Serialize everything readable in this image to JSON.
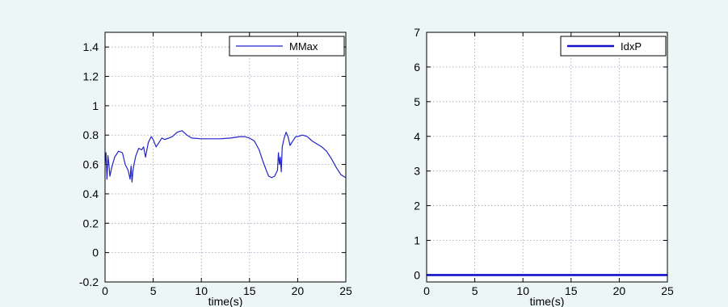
{
  "figure": {
    "background": "#ecf6f6"
  },
  "chart_data": [
    {
      "type": "line",
      "xlabel": "time(s)",
      "ylabel": "",
      "xlim": [
        0,
        25
      ],
      "ylim": [
        -0.2,
        1.5
      ],
      "xticks": [
        0,
        5,
        10,
        15,
        20,
        25
      ],
      "yticks": [
        -0.2,
        0,
        0.2,
        0.4,
        0.6,
        0.8,
        1,
        1.2,
        1.4
      ],
      "grid": true,
      "legend_position": "top-right",
      "series": [
        {
          "name": "MMax",
          "color": "#2222cc",
          "line_width": "thin",
          "x": [
            0,
            0.1,
            0.2,
            0.3,
            0.4,
            0.5,
            0.7,
            1.0,
            1.4,
            1.8,
            2.1,
            2.4,
            2.6,
            2.7,
            2.8,
            2.9,
            3.0,
            3.2,
            3.5,
            3.8,
            4.0,
            4.2,
            4.5,
            4.8,
            5.0,
            5.3,
            5.6,
            5.9,
            6.2,
            6.6,
            7.0,
            7.5,
            8.0,
            8.5,
            9.0,
            10,
            11,
            12,
            13,
            14,
            14.5,
            15,
            15.5,
            16,
            16.4,
            16.8,
            17.0,
            17.3,
            17.6,
            17.9,
            18.0,
            18.1,
            18.2,
            18.3,
            18.4,
            18.6,
            18.8,
            19.0,
            19.2,
            19.4,
            19.6,
            19.8,
            20.0,
            20.5,
            21.0,
            21.5,
            22.0,
            22.5,
            23.0,
            23.5,
            24.0,
            24.5,
            25.0
          ],
          "y": [
            0.6,
            0.68,
            0.5,
            0.66,
            0.6,
            0.52,
            0.58,
            0.65,
            0.69,
            0.68,
            0.6,
            0.56,
            0.5,
            0.59,
            0.48,
            0.56,
            0.6,
            0.66,
            0.71,
            0.7,
            0.72,
            0.65,
            0.75,
            0.79,
            0.77,
            0.72,
            0.75,
            0.78,
            0.77,
            0.78,
            0.79,
            0.82,
            0.83,
            0.8,
            0.78,
            0.775,
            0.775,
            0.775,
            0.78,
            0.79,
            0.79,
            0.78,
            0.76,
            0.7,
            0.62,
            0.55,
            0.52,
            0.51,
            0.52,
            0.56,
            0.68,
            0.6,
            0.65,
            0.55,
            0.72,
            0.78,
            0.82,
            0.79,
            0.73,
            0.75,
            0.77,
            0.79,
            0.79,
            0.8,
            0.79,
            0.76,
            0.74,
            0.72,
            0.69,
            0.64,
            0.58,
            0.53,
            0.51
          ]
        }
      ]
    },
    {
      "type": "line",
      "xlabel": "time(s)",
      "ylabel": "",
      "xlim": [
        0,
        25
      ],
      "ylim": [
        -0.2,
        7
      ],
      "xticks": [
        0,
        5,
        10,
        15,
        20,
        25
      ],
      "yticks": [
        0,
        1,
        2,
        3,
        4,
        5,
        6,
        7
      ],
      "grid": true,
      "legend_position": "top-right",
      "series": [
        {
          "name": "IdxP",
          "color": "#1111cc",
          "line_width": "thick",
          "x": [
            0,
            25
          ],
          "y": [
            0,
            0
          ]
        }
      ]
    }
  ]
}
